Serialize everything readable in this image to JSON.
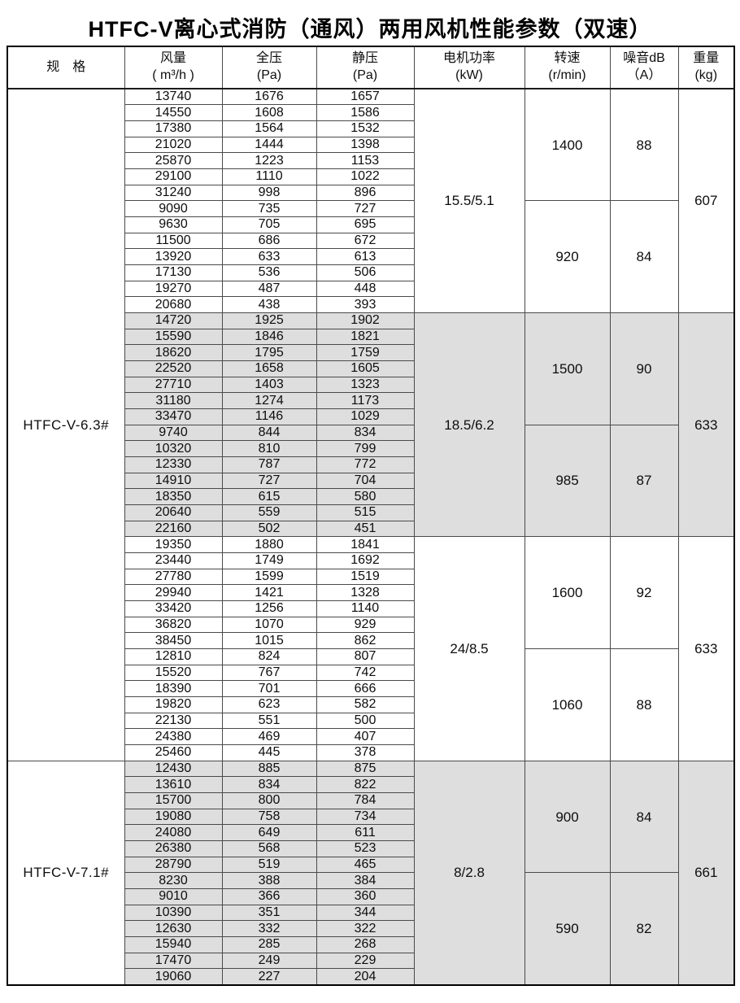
{
  "title": "HTFC-V离心式消防（通风）两用风机性能参数（双速）",
  "table": {
    "headers": [
      {
        "line1": "规　格",
        "line2": ""
      },
      {
        "line1": "风量",
        "line2": "( m³/h )"
      },
      {
        "line1": "全压",
        "line2": "(Pa)"
      },
      {
        "line1": "静压",
        "line2": "(Pa)"
      },
      {
        "line1": "电机功率",
        "line2": "(kW)"
      },
      {
        "line1": "转速",
        "line2": "(r/min)"
      },
      {
        "line1": "噪音dB",
        "line2": "（A）"
      },
      {
        "line1": "重量",
        "line2": "(kg)"
      }
    ],
    "specs": [
      {
        "label": "HTFC-V-6.3#",
        "block_count": 3
      },
      {
        "label": "HTFC-V-7.1#",
        "block_count": 1
      }
    ],
    "blocks": [
      {
        "shaded": false,
        "power": "15.5/5.1",
        "weight": 607,
        "groups": [
          {
            "speed": 1400,
            "noise": 88,
            "rows": [
              [
                13740,
                1676,
                1657
              ],
              [
                14550,
                1608,
                1586
              ],
              [
                17380,
                1564,
                1532
              ],
              [
                21020,
                1444,
                1398
              ],
              [
                25870,
                1223,
                1153
              ],
              [
                29100,
                1110,
                1022
              ],
              [
                31240,
                998,
                896
              ]
            ]
          },
          {
            "speed": 920,
            "noise": 84,
            "rows": [
              [
                9090,
                735,
                727
              ],
              [
                9630,
                705,
                695
              ],
              [
                11500,
                686,
                672
              ],
              [
                13920,
                633,
                613
              ],
              [
                17130,
                536,
                506
              ],
              [
                19270,
                487,
                448
              ],
              [
                20680,
                438,
                393
              ]
            ]
          }
        ]
      },
      {
        "shaded": true,
        "power": "18.5/6.2",
        "weight": 633,
        "groups": [
          {
            "speed": 1500,
            "noise": 90,
            "rows": [
              [
                14720,
                1925,
                1902
              ],
              [
                15590,
                1846,
                1821
              ],
              [
                18620,
                1795,
                1759
              ],
              [
                22520,
                1658,
                1605
              ],
              [
                27710,
                1403,
                1323
              ],
              [
                31180,
                1274,
                1173
              ],
              [
                33470,
                1146,
                1029
              ]
            ]
          },
          {
            "speed": 985,
            "noise": 87,
            "rows": [
              [
                9740,
                844,
                834
              ],
              [
                10320,
                810,
                799
              ],
              [
                12330,
                787,
                772
              ],
              [
                14910,
                727,
                704
              ],
              [
                18350,
                615,
                580
              ],
              [
                20640,
                559,
                515
              ],
              [
                22160,
                502,
                451
              ]
            ]
          }
        ]
      },
      {
        "shaded": false,
        "power": "24/8.5",
        "weight": 633,
        "groups": [
          {
            "speed": 1600,
            "noise": 92,
            "rows": [
              [
                19350,
                1880,
                1841
              ],
              [
                23440,
                1749,
                1692
              ],
              [
                27780,
                1599,
                1519
              ],
              [
                29940,
                1421,
                1328
              ],
              [
                33420,
                1256,
                1140
              ],
              [
                36820,
                1070,
                929
              ],
              [
                38450,
                1015,
                862
              ]
            ]
          },
          {
            "speed": 1060,
            "noise": 88,
            "rows": [
              [
                12810,
                824,
                807
              ],
              [
                15520,
                767,
                742
              ],
              [
                18390,
                701,
                666
              ],
              [
                19820,
                623,
                582
              ],
              [
                22130,
                551,
                500
              ],
              [
                24380,
                469,
                407
              ],
              [
                25460,
                445,
                378
              ]
            ]
          }
        ]
      },
      {
        "shaded": true,
        "power": "8/2.8",
        "weight": 661,
        "groups": [
          {
            "speed": 900,
            "noise": 84,
            "rows": [
              [
                12430,
                885,
                875
              ],
              [
                13610,
                834,
                822
              ],
              [
                15700,
                800,
                784
              ],
              [
                19080,
                758,
                734
              ],
              [
                24080,
                649,
                611
              ],
              [
                26380,
                568,
                523
              ],
              [
                28790,
                519,
                465
              ]
            ]
          },
          {
            "speed": 590,
            "noise": 82,
            "rows": [
              [
                8230,
                388,
                384
              ],
              [
                9010,
                366,
                360
              ],
              [
                10390,
                351,
                344
              ],
              [
                12630,
                332,
                322
              ],
              [
                15940,
                285,
                268
              ],
              [
                17470,
                249,
                229
              ],
              [
                19060,
                227,
                204
              ]
            ]
          }
        ]
      }
    ]
  }
}
